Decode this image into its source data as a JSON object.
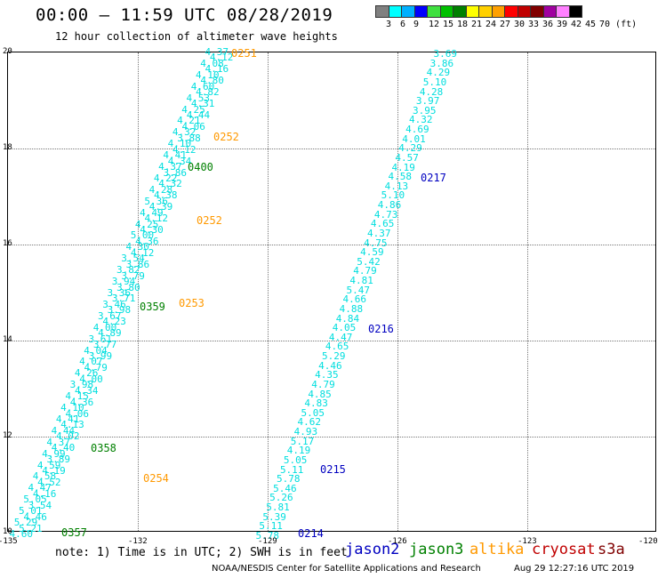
{
  "header": {
    "title": "00:00 — 11:59 UTC 08/28/2019",
    "subtitle": "12 hour collection of altimeter wave heights"
  },
  "legend": {
    "colors": [
      "#808080",
      "#00ffff",
      "#00b0ff",
      "#0000ff",
      "#40e040",
      "#00c000",
      "#008000",
      "#ffff00",
      "#ffd000",
      "#ffa000",
      "#ff0000",
      "#c00000",
      "#800000",
      "#a000a0",
      "#ff80ff",
      "#000000"
    ],
    "labels": [
      "3",
      "6",
      "9",
      "12",
      "15",
      "18",
      "21",
      "24",
      "27",
      "30",
      "33",
      "36",
      "39",
      "42",
      "45",
      "70 (ft)"
    ]
  },
  "axes": {
    "lat_labels": [
      "20",
      "18",
      "16",
      "14",
      "12",
      "10"
    ],
    "lon_labels": [
      "-135",
      "-132",
      "-129",
      "-126",
      "-123",
      "-120"
    ]
  },
  "chart_data": {
    "type": "map",
    "lat_range": [
      10,
      20
    ],
    "lon_range": [
      -135,
      -120
    ],
    "time_labels": [
      {
        "text": "0251",
        "color": "#ff9900"
      },
      {
        "text": "0252",
        "color": "#ff9900"
      },
      {
        "text": "0400",
        "color": "#008000"
      },
      {
        "text": "0217",
        "color": "#0000c0"
      },
      {
        "text": "0252",
        "color": "#ff9900"
      },
      {
        "text": "0359",
        "color": "#008000"
      },
      {
        "text": "0253",
        "color": "#ff9900"
      },
      {
        "text": "0216",
        "color": "#0000c0"
      },
      {
        "text": "0358",
        "color": "#008000"
      },
      {
        "text": "0215",
        "color": "#0000c0"
      },
      {
        "text": "0254",
        "color": "#ff9900"
      },
      {
        "text": "0357",
        "color": "#008000"
      },
      {
        "text": "0214",
        "color": "#0000c0"
      }
    ],
    "track_a": [
      "4.37",
      "4.12",
      "4.08",
      "4.16",
      "4.10",
      "4.80",
      "4.60",
      "4.82",
      "4.53",
      "4.31",
      "4.25",
      "4.44",
      "4.21",
      "4.06",
      "4.32",
      "3.88",
      "4.10",
      "4.12",
      "4.41",
      "4.34",
      "4.37",
      "3.86",
      "4.22",
      "4.32",
      "4.28",
      "4.38",
      "5.36",
      "4.39",
      "4.49",
      "4.12",
      "4.25",
      "4.30",
      "5.00",
      "4.36",
      "4.30",
      "4.12",
      "3.54",
      "3.86",
      "3.82",
      "3.79",
      "3.94",
      "3.80",
      "3.36",
      "3.71",
      "3.46",
      "3.98",
      "3.67",
      "4.23",
      "4.00",
      "4.89",
      "3.61",
      "3.77",
      "4.04",
      "3.99",
      "4.07",
      "4.79",
      "4.26",
      "4.00",
      "3.98",
      "4.34",
      "4.15",
      "4.36",
      "4.10",
      "4.06",
      "4.41",
      "4.13",
      "4.44",
      "4.02",
      "4.37",
      "4.40",
      "4.99",
      "3.89",
      "4.59",
      "4.19",
      "4.58",
      "4.52",
      "4.47",
      "4.16",
      "5.05",
      "3.54",
      "5.01",
      "4.46",
      "5.29",
      "5.21",
      "4.60"
    ],
    "track_b": [
      "3.69",
      "3.86",
      "4.29",
      "5.10",
      "4.28",
      "3.97",
      "3.95",
      "4.32",
      "4.69",
      "4.01",
      "4.29",
      "4.57",
      "4.19",
      "4.58",
      "4.13",
      "5.10",
      "4.86",
      "4.73",
      "4.65",
      "4.37",
      "4.75",
      "4.59",
      "5.42",
      "4.79",
      "4.81",
      "5.47",
      "4.66",
      "4.88",
      "4.84",
      "4.05",
      "4.47",
      "4.65",
      "5.29",
      "4.46",
      "4.35",
      "4.79",
      "4.85",
      "4.83",
      "5.05",
      "4.62",
      "4.93",
      "5.17",
      "4.19",
      "5.05",
      "5.11",
      "5.78",
      "5.46",
      "5.26",
      "5.81",
      "5.39",
      "5.11",
      "5.78"
    ]
  },
  "footer": {
    "note": "note: 1) Time is in UTC; 2) SWH is in feet",
    "satellites": [
      {
        "name": "jason2",
        "color": "#0000c0"
      },
      {
        "name": "jason3",
        "color": "#008000"
      },
      {
        "name": "altika",
        "color": "#ff9900"
      },
      {
        "name": "cryosat",
        "color": "#c00000"
      },
      {
        "name": "s3a",
        "color": "#800000"
      }
    ],
    "credit": "NOAA/NESDIS Center for Satellite Applications and Research",
    "timestamp": "Aug 29 12:27:16 UTC 2019"
  }
}
